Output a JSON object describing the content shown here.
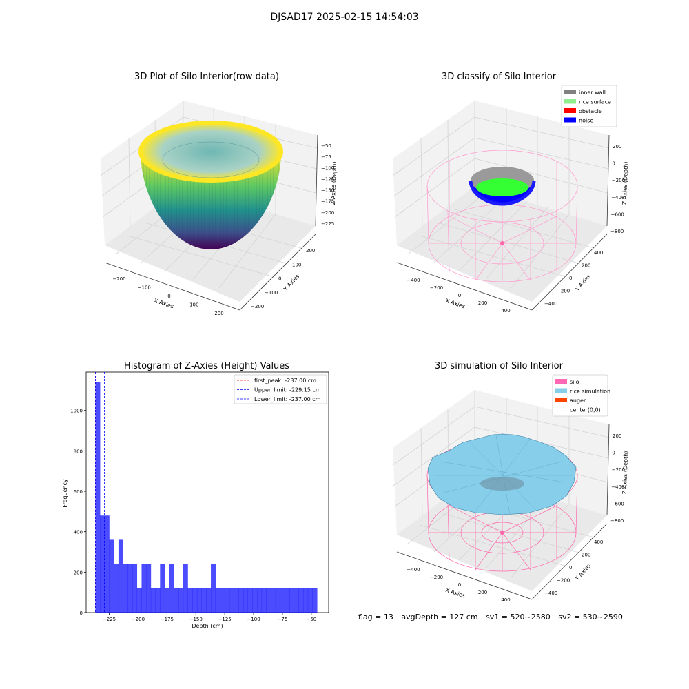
{
  "suptitle": "DJSAD17 2025-02-15 14:54:03",
  "panels": {
    "raw": {
      "title": "3D Plot of Silo Interior(row data)",
      "xlabel": "X Axies",
      "ylabel": "Y Axies",
      "zlabel": "Z Axies (Depth)",
      "xticks": [
        "−200",
        "−100",
        "0",
        "100",
        "200"
      ],
      "yticks": [
        "−200",
        "−100",
        "0",
        "100",
        "200"
      ],
      "zticks": [
        "−50",
        "−75",
        "−100",
        "−125",
        "−150",
        "−175",
        "−200",
        "−225"
      ]
    },
    "classify": {
      "title": "3D classify of Silo Interior",
      "xlabel": "X Axies",
      "ylabel": "Y Axies",
      "zlabel": "Z Axies (Depth)",
      "xticks": [
        "−400",
        "−200",
        "0",
        "200",
        "400"
      ],
      "yticks": [
        "−400",
        "−200",
        "0",
        "200",
        "400"
      ],
      "zticks": [
        "200",
        "0",
        "−200",
        "−400",
        "−600",
        "−800"
      ],
      "legend": [
        {
          "label": "inner wall",
          "color": "#808080"
        },
        {
          "label": "rice surface",
          "color": "#90ee90"
        },
        {
          "label": "obstacle",
          "color": "#ff0000"
        },
        {
          "label": "noise",
          "color": "#0000ff"
        }
      ]
    },
    "simulation": {
      "title": "3D simulation of Silo Interior",
      "xlabel": "X Axies",
      "ylabel": "Y Axies",
      "zlabel": "Z Axies (Depth)",
      "xticks": [
        "−400",
        "−200",
        "0",
        "200",
        "400"
      ],
      "yticks": [
        "−400",
        "−200",
        "0",
        "200",
        "400"
      ],
      "zticks": [
        "200",
        "0",
        "−200",
        "−400",
        "−600",
        "−800"
      ],
      "legend": [
        {
          "label": "silo",
          "color": "#ff69b4"
        },
        {
          "label": "rice simulation",
          "color": "#87ceeb"
        },
        {
          "label": "auger",
          "color": "#ff4500"
        },
        {
          "label": "center(0,0)",
          "color": "none"
        }
      ]
    }
  },
  "status": {
    "flag": "flag = 13",
    "avg_depth": "avgDepth = 127 cm",
    "sv1": "sv1 = 520~2580",
    "sv2": "sv2 = 530~2590"
  },
  "chart_data": [
    {
      "type": "scatter",
      "title": "3D Plot of Silo Interior(row data)",
      "xlabel": "X Axies",
      "ylabel": "Y Axies",
      "zlabel": "Z Axies (Depth)",
      "xlim": [
        -250,
        250
      ],
      "ylim": [
        -250,
        250
      ],
      "zlim": [
        -240,
        -40
      ],
      "colormap": "viridis"
    },
    {
      "type": "scatter",
      "title": "3D classify of Silo Interior",
      "xlabel": "X Axies",
      "ylabel": "Y Axies",
      "zlabel": "Z Axies (Depth)",
      "xlim": [
        -500,
        500
      ],
      "ylim": [
        -500,
        500
      ],
      "zlim": [
        -850,
        300
      ],
      "series": [
        {
          "name": "inner wall"
        },
        {
          "name": "rice surface"
        },
        {
          "name": "obstacle"
        },
        {
          "name": "noise"
        }
      ],
      "legend": "top-right"
    },
    {
      "type": "bar",
      "title": "Histogram of Z-Axies (Height) Values",
      "xlabel": "Depth (cm)",
      "ylabel": "Frequency",
      "xlim": [
        -245,
        -35
      ],
      "ylim": [
        0,
        1190
      ],
      "xticks": [
        -225,
        -200,
        -175,
        -150,
        -125,
        -100,
        -75,
        -50
      ],
      "yticks": [
        0,
        200,
        400,
        600,
        800,
        1000
      ],
      "bin_start": -237,
      "bin_width": 4,
      "values": [
        1140,
        480,
        480,
        360,
        240,
        360,
        240,
        240,
        240,
        120,
        240,
        240,
        120,
        120,
        240,
        120,
        240,
        120,
        120,
        240,
        120,
        120,
        120,
        120,
        120,
        240,
        120,
        120,
        120,
        120,
        120,
        120,
        120,
        120,
        120,
        120,
        120,
        120,
        120,
        120,
        120,
        120,
        120,
        120,
        120,
        120,
        120,
        120
      ],
      "bar_color": "#0000ff",
      "vlines": [
        {
          "label": "first_peak: -237.00 cm",
          "x": -237.0,
          "color": "#ff0000"
        },
        {
          "label": "Upper_limit: -229.15 cm",
          "x": -229.15,
          "color": "#0000ff"
        },
        {
          "label": "Lower_limit: -237.00 cm",
          "x": -237.0,
          "color": "#0000ff"
        }
      ],
      "legend": "top-right"
    },
    {
      "type": "scatter",
      "title": "3D simulation of Silo Interior",
      "xlabel": "X Axies",
      "ylabel": "Y Axies",
      "zlabel": "Z Axies (Depth)",
      "xlim": [
        -500,
        500
      ],
      "ylim": [
        -500,
        500
      ],
      "zlim": [
        -850,
        300
      ],
      "series": [
        {
          "name": "silo"
        },
        {
          "name": "rice simulation"
        },
        {
          "name": "auger"
        },
        {
          "name": "center(0,0)"
        }
      ],
      "legend": "top-right"
    }
  ]
}
